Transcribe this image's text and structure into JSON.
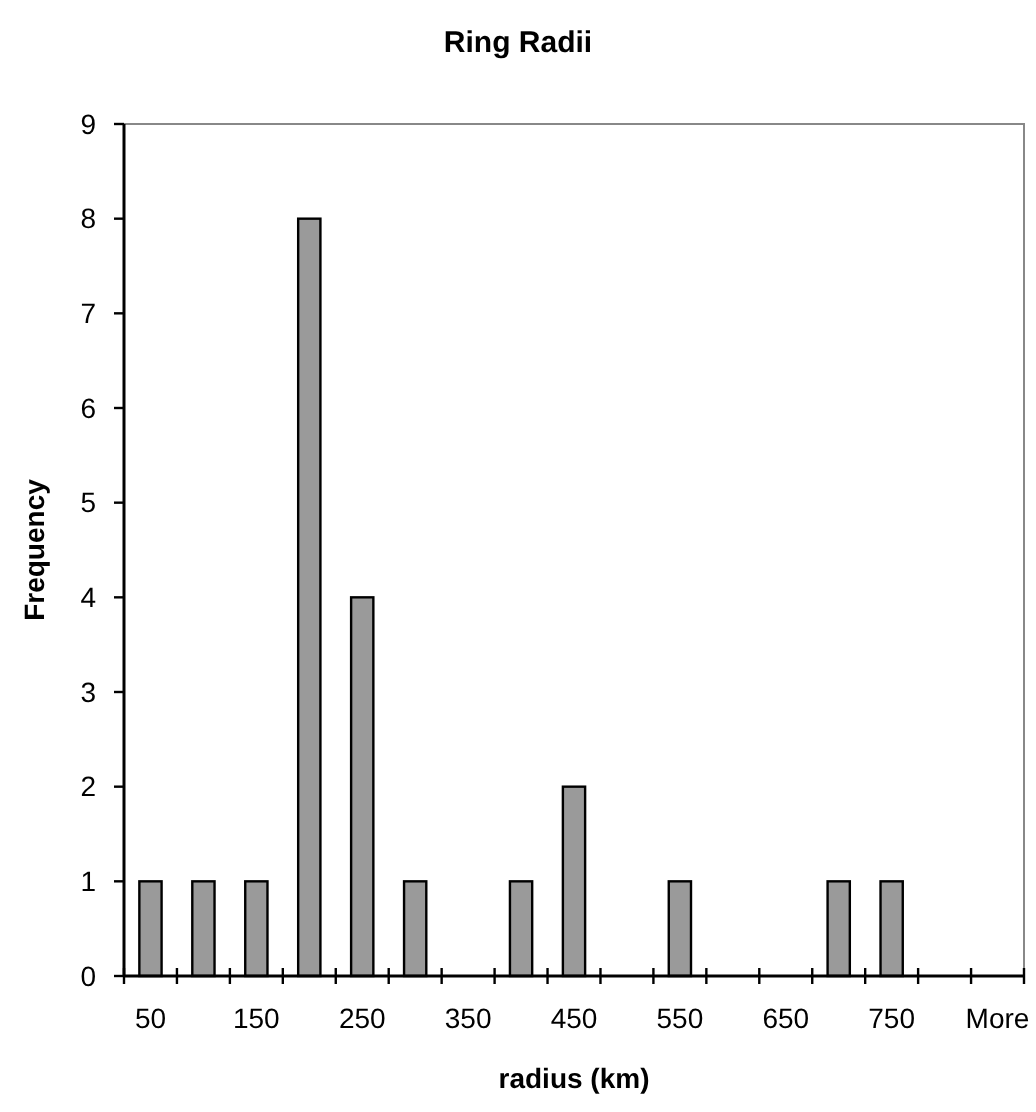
{
  "chart_data": {
    "type": "bar",
    "title": "Ring Radii",
    "xlabel": "radius (km)",
    "ylabel": "Frequency",
    "categories": [
      "50",
      null,
      "150",
      null,
      "250",
      null,
      "350",
      null,
      "450",
      null,
      "550",
      null,
      "650",
      null,
      "750",
      null,
      "More"
    ],
    "values": [
      1,
      1,
      1,
      8,
      4,
      1,
      0,
      1,
      2,
      0,
      1,
      0,
      0,
      1,
      1,
      0,
      0
    ],
    "color": "#9a9a9a",
    "ylim": [
      0,
      9
    ],
    "yticks": [
      0,
      1,
      2,
      3,
      4,
      5,
      6,
      7,
      8,
      9
    ],
    "grid": false
  }
}
